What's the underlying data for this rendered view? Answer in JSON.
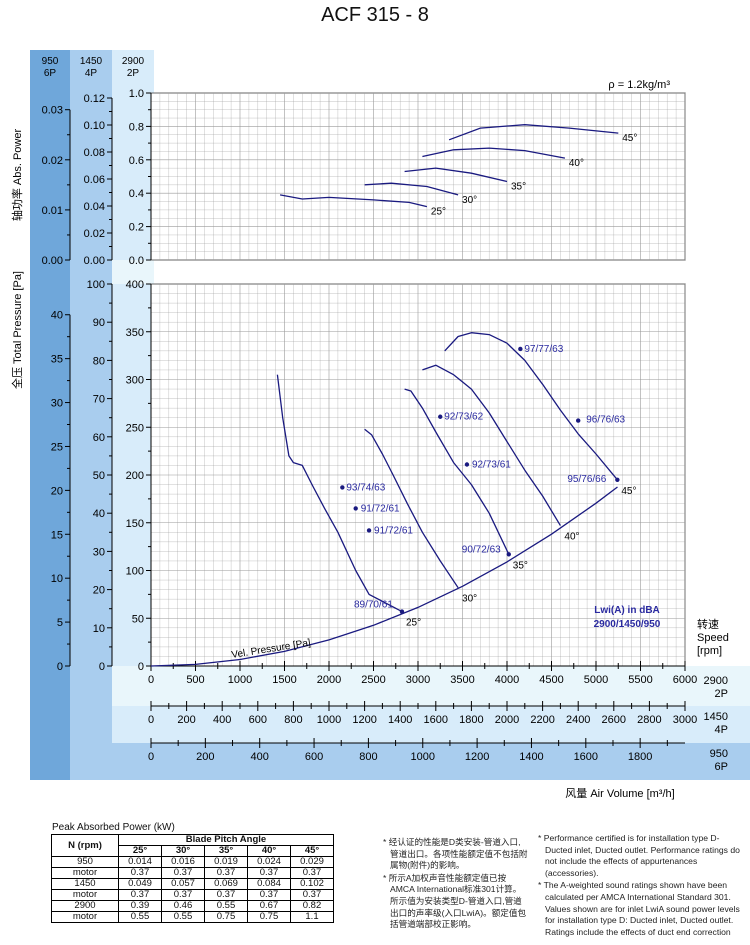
{
  "title": "ACF 315 - 8",
  "density_label": "ρ = 1.2kg/m³",
  "speed_headers": [
    {
      "rpm": "950",
      "poles": "6P"
    },
    {
      "rpm": "1450",
      "poles": "4P"
    },
    {
      "rpm": "2900",
      "poles": "2P"
    }
  ],
  "power_axis_label": "轴功率 Abs. Power",
  "pressure_axis_label": "全压 Total Pressure [Pa]",
  "speed_label": [
    "转速",
    "Speed",
    "[rpm]"
  ],
  "x_axis_label": "风量 Air Volume [m³/h]",
  "lwi_label": [
    "Lwi(A) in dBA",
    "2900/1450/950"
  ],
  "vel_pressure_label": "Vel. Pressure [Pa]",
  "colors": {
    "curve": "#1a1a80",
    "label_blue": "#2a2aa0",
    "bar_dark": "#6fa7da",
    "bar_mid": "#a9cdee",
    "bar_light": "#d8ecfa",
    "bar_pale": "#e9f6fb",
    "grid": "#9a9a9a"
  },
  "chart_data": {
    "type": "line",
    "x_axes": [
      {
        "speed": "2900",
        "poles": "2P",
        "range": [
          0,
          6000
        ],
        "ticks": [
          "0",
          "500",
          "1000",
          "1500",
          "2000",
          "2500",
          "3000",
          "3500",
          "4000",
          "4500",
          "5000",
          "5500",
          "6000"
        ]
      },
      {
        "speed": "1450",
        "poles": "4P",
        "range": [
          0,
          3000
        ],
        "ticks": [
          "0",
          "200",
          "400",
          "600",
          "800",
          "1000",
          "1200",
          "1400",
          "1600",
          "1800",
          "2000",
          "2200",
          "2400",
          "2600",
          "2800",
          "3000"
        ]
      },
      {
        "speed": "950",
        "poles": "6P",
        "range": [
          0,
          1965
        ],
        "ticks": [
          "0",
          "200",
          "400",
          "600",
          "800",
          "1000",
          "1200",
          "1400",
          "1600",
          "1800"
        ]
      }
    ],
    "power_axes": [
      {
        "speed": "950",
        "ticks": [
          "0.00",
          "0.01",
          "0.02",
          "0.03"
        ]
      },
      {
        "speed": "1450",
        "ticks": [
          "0.00",
          "0.02",
          "0.04",
          "0.06",
          "0.08",
          "0.10",
          "0.12"
        ]
      },
      {
        "speed": "2900",
        "ticks": [
          "0.0",
          "0.2",
          "0.4",
          "0.6",
          "0.8",
          "1.0"
        ],
        "range": [
          0,
          1.0
        ]
      }
    ],
    "pressure_axes": [
      {
        "speed": "950",
        "ticks": [
          "0",
          "5",
          "10",
          "15",
          "20",
          "25",
          "30",
          "35",
          "40"
        ]
      },
      {
        "speed": "1450",
        "ticks": [
          "0",
          "10",
          "20",
          "30",
          "40",
          "50",
          "60",
          "70",
          "80",
          "90",
          "100"
        ]
      },
      {
        "speed": "2900",
        "ticks": [
          "0",
          "50",
          "100",
          "150",
          "200",
          "250",
          "300",
          "350",
          "400"
        ],
        "range": [
          0,
          400
        ]
      }
    ],
    "pressure_curves": [
      {
        "angle": "25°",
        "points": [
          [
            1420,
            305
          ],
          [
            1480,
            260
          ],
          [
            1550,
            220
          ],
          [
            1600,
            213
          ],
          [
            1700,
            210
          ],
          [
            1820,
            188
          ],
          [
            1950,
            165
          ],
          [
            2100,
            140
          ],
          [
            2300,
            100
          ],
          [
            2450,
            75
          ],
          [
            2820,
            57
          ]
        ]
      },
      {
        "angle": "30°",
        "points": [
          [
            2400,
            248
          ],
          [
            2480,
            242
          ],
          [
            2600,
            222
          ],
          [
            2720,
            200
          ],
          [
            2880,
            170
          ],
          [
            3050,
            140
          ],
          [
            3250,
            110
          ],
          [
            3450,
            82
          ]
        ]
      },
      {
        "angle": "35°",
        "points": [
          [
            2850,
            290
          ],
          [
            2920,
            288
          ],
          [
            3050,
            270
          ],
          [
            3200,
            245
          ],
          [
            3400,
            213
          ],
          [
            3600,
            190
          ],
          [
            3800,
            160
          ],
          [
            4020,
            117
          ]
        ]
      },
      {
        "angle": "40°",
        "points": [
          [
            3050,
            310
          ],
          [
            3200,
            315
          ],
          [
            3400,
            305
          ],
          [
            3600,
            290
          ],
          [
            3800,
            265
          ],
          [
            4000,
            235
          ],
          [
            4200,
            205
          ],
          [
            4400,
            178
          ],
          [
            4600,
            147
          ]
        ]
      },
      {
        "angle": "45°",
        "points": [
          [
            3300,
            330
          ],
          [
            3450,
            345
          ],
          [
            3600,
            349
          ],
          [
            3800,
            347
          ],
          [
            4000,
            338
          ],
          [
            4200,
            320
          ],
          [
            4400,
            295
          ],
          [
            4600,
            268
          ],
          [
            4800,
            243
          ],
          [
            5000,
            222
          ],
          [
            5240,
            195
          ]
        ]
      }
    ],
    "vel_pressure": {
      "points": [
        [
          0,
          0
        ],
        [
          500,
          1.7
        ],
        [
          1000,
          6.8
        ],
        [
          1500,
          15.3
        ],
        [
          2000,
          27.3
        ],
        [
          2500,
          42.6
        ],
        [
          3000,
          61.4
        ],
        [
          3500,
          83.5
        ],
        [
          4000,
          109
        ],
        [
          4500,
          138
        ],
        [
          5000,
          170.5
        ],
        [
          5242,
          187.4
        ]
      ]
    },
    "operating_points": [
      {
        "x": 2150,
        "y": 187,
        "label": "93/74/63"
      },
      {
        "x": 2300,
        "y": 165,
        "label": "91/72/61"
      },
      {
        "x": 2450,
        "y": 142,
        "label": "91/72/61"
      },
      {
        "x": 2820,
        "y": 57,
        "label": "89/70/61"
      },
      {
        "x": 3250,
        "y": 261,
        "label": "92/73/62"
      },
      {
        "x": 3550,
        "y": 211,
        "label": "92/73/61"
      },
      {
        "x": 4020,
        "y": 117,
        "label": "90/72/63"
      },
      {
        "x": 4150,
        "y": 332,
        "label": "97/77/63"
      },
      {
        "x": 4800,
        "y": 257,
        "label": "96/76/63"
      },
      {
        "x": 5240,
        "y": 195,
        "label": "95/76/66"
      }
    ],
    "power_curves": [
      {
        "angle": "25°",
        "points": [
          [
            1450,
            0.39
          ],
          [
            1700,
            0.365
          ],
          [
            2000,
            0.375
          ],
          [
            2500,
            0.36
          ],
          [
            2900,
            0.345
          ],
          [
            3100,
            0.32
          ]
        ]
      },
      {
        "angle": "30°",
        "points": [
          [
            2400,
            0.45
          ],
          [
            2700,
            0.46
          ],
          [
            3100,
            0.44
          ],
          [
            3450,
            0.39
          ]
        ]
      },
      {
        "angle": "35°",
        "points": [
          [
            2850,
            0.53
          ],
          [
            3200,
            0.55
          ],
          [
            3600,
            0.52
          ],
          [
            4000,
            0.47
          ]
        ]
      },
      {
        "angle": "40°",
        "points": [
          [
            3050,
            0.62
          ],
          [
            3400,
            0.66
          ],
          [
            3800,
            0.67
          ],
          [
            4200,
            0.655
          ],
          [
            4650,
            0.61
          ]
        ]
      },
      {
        "angle": "45°",
        "points": [
          [
            3350,
            0.72
          ],
          [
            3700,
            0.79
          ],
          [
            4200,
            0.81
          ],
          [
            4700,
            0.79
          ],
          [
            5250,
            0.76
          ]
        ]
      }
    ]
  },
  "power_table": {
    "title": "Peak Absorbed Power (kW)",
    "group_header": "Blade Pitch Angle",
    "row_header": "N (rpm)",
    "angles": [
      "25°",
      "30°",
      "35°",
      "40°",
      "45°"
    ],
    "rows": [
      {
        "label": "950",
        "values": [
          "0.014",
          "0.016",
          "0.019",
          "0.024",
          "0.029"
        ]
      },
      {
        "label": "motor",
        "values": [
          "0.37",
          "0.37",
          "0.37",
          "0.37",
          "0.37"
        ]
      },
      {
        "label": "1450",
        "values": [
          "0.049",
          "0.057",
          "0.069",
          "0.084",
          "0.102"
        ]
      },
      {
        "label": "motor",
        "values": [
          "0.37",
          "0.37",
          "0.37",
          "0.37",
          "0.37"
        ]
      },
      {
        "label": "2900",
        "values": [
          "0.39",
          "0.46",
          "0.55",
          "0.67",
          "0.82"
        ]
      },
      {
        "label": "motor",
        "values": [
          "0.55",
          "0.55",
          "0.75",
          "0.75",
          "1.1"
        ]
      }
    ]
  },
  "notes_cn": [
    "* 经认证的性能是D类安装-管道入口,管道出口。各项性能额定值不包括附属物(附件)的影响。",
    "* 所示A加权声音性能额定值已按AMCA International标准301计算。所示值为安装类型D-管道入口,管道出口的声率级(入口LwiA)。额定值包括管道端部校正影响。"
  ],
  "notes_en": [
    "* Performance certified is for installation type D-Ducted inlet, Ducted outlet. Performance ratings do not include the effects of appurtenances (accessories).",
    "* The A-weighted sound ratings shown have been calculated per AMCA International Standard 301. Values shown are for inlet LwiA sound power levels for installation type D: Ducted inlet, Ducted outlet. Ratings include the effects of duct end correction"
  ]
}
